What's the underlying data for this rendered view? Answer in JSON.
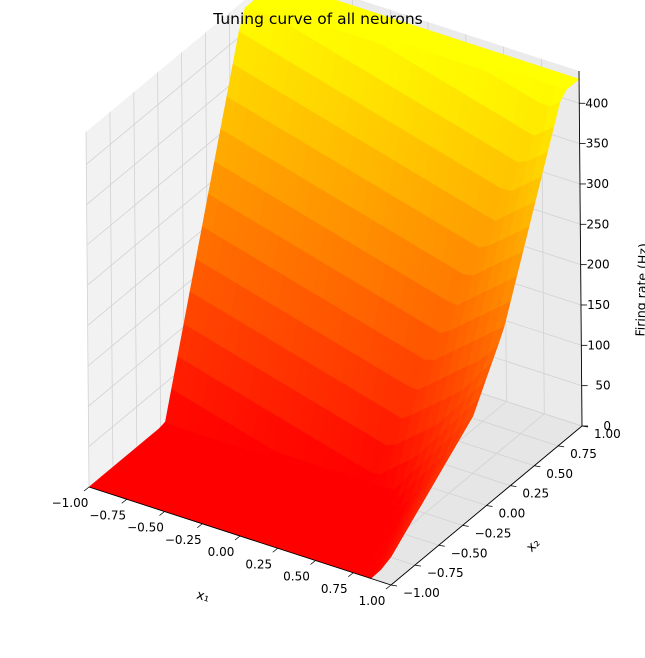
{
  "chart_data": {
    "type": "surface3d",
    "title": "Tuning curve of all neurons",
    "xlabel": "x₁",
    "ylabel": "x₂",
    "zlabel": "Firing rate (Hz)",
    "x_ticks": [
      "−1.00",
      "−0.75",
      "−0.50",
      "−0.25",
      "0.00",
      "0.25",
      "0.50",
      "0.75",
      "1.00"
    ],
    "y_ticks": [
      "−1.00",
      "−0.75",
      "−0.50",
      "−0.25",
      "0.00",
      "0.25",
      "0.50",
      "0.75",
      "1.00"
    ],
    "z_ticks": [
      "0",
      "50",
      "100",
      "150",
      "200",
      "250",
      "300",
      "350",
      "400"
    ],
    "xlim": [
      -1,
      1
    ],
    "ylim": [
      -1,
      1
    ],
    "zlim": [
      0,
      440
    ],
    "grid": true,
    "colormap": [
      "#ff0000",
      "#ff8000",
      "#ffff00"
    ],
    "max_rate": 430
  }
}
